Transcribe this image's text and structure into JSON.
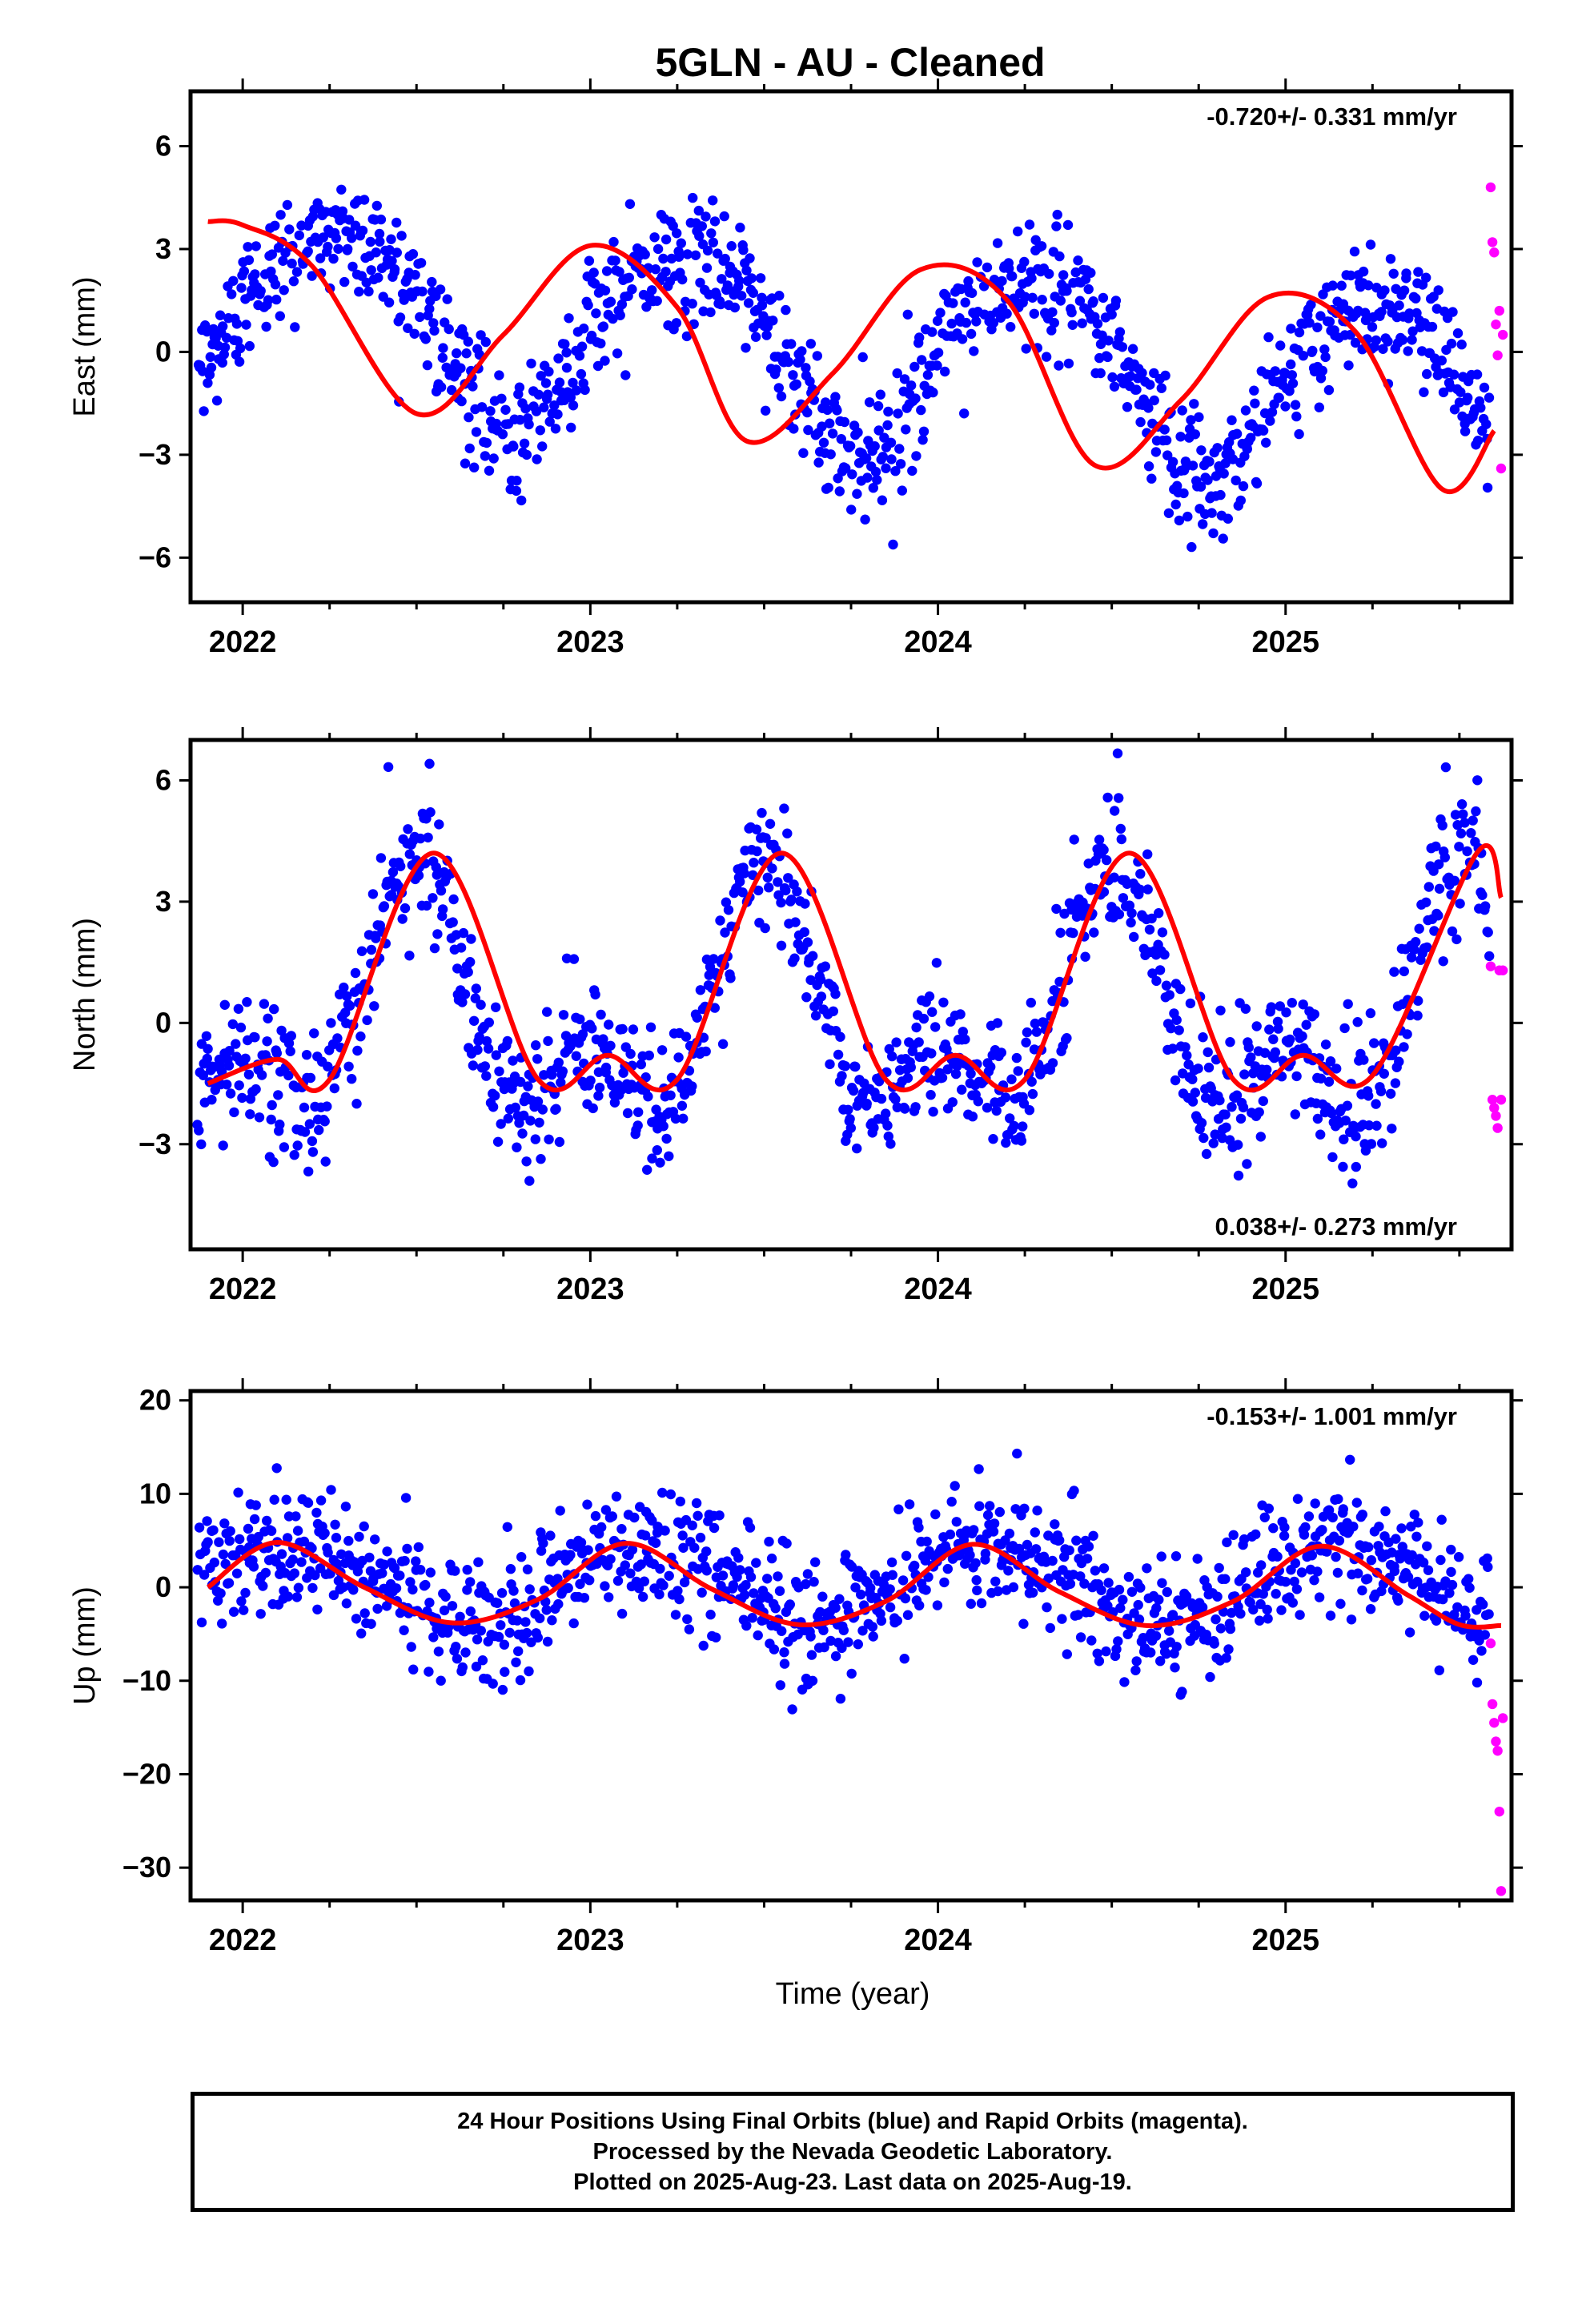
{
  "title": "5GLN  - AU - Cleaned",
  "xlabel": "Time (year)",
  "x_tick_labels": [
    "2022",
    "2023",
    "2024",
    "2025"
  ],
  "footer": {
    "line1": "24 Hour Positions Using Final Orbits (blue) and Rapid Orbits (magenta).",
    "line2": "Processed by the Nevada Geodetic Laboratory.",
    "line3": "Plotted on 2025-Aug-23. Last data on 2025-Aug-19."
  },
  "colors": {
    "final": "#0000ff",
    "rapid": "#ff00ff",
    "model": "#ff0000",
    "frame": "#000000"
  },
  "chart_data": [
    {
      "type": "scatter",
      "component": "East",
      "ylabel": "East (mm)",
      "rate": "-0.720+/- 0.331 mm/yr",
      "rate_position": "top-right",
      "xlim": [
        2021.85,
        2025.65
      ],
      "ylim": [
        -7.3,
        7.6
      ],
      "yticks": [
        -6,
        -3,
        0,
        3,
        6
      ],
      "ytick_labels": [
        "−6",
        "−3",
        "0",
        "3",
        "6"
      ],
      "fit": {
        "trend": -0.72,
        "offset": 0.05,
        "annual": [
          {
            "c": -0.3,
            "s": 2.6
          }
        ],
        "semiannual": [
          {
            "c": 0.3,
            "s": 0
          }
        ],
        "scatter": 0.9
      },
      "model_curve": {
        "x": [
          2021.9,
          2022.0,
          2022.2,
          2022.5,
          2022.75,
          2023.0,
          2023.25,
          2023.45,
          2023.7,
          2023.95,
          2024.2,
          2024.45,
          2024.7,
          2024.95,
          2025.2,
          2025.45,
          2025.6
        ],
        "y": [
          3.8,
          3.7,
          2.5,
          -1.8,
          0.5,
          3.1,
          1.3,
          -2.6,
          -0.6,
          2.4,
          1.5,
          -3.3,
          -1.4,
          1.6,
          0.6,
          -4.0,
          -2.3
        ]
      },
      "rapid": {
        "x": [
          2025.59,
          2025.595,
          2025.6,
          2025.605,
          2025.61,
          2025.615,
          2025.62,
          2025.625
        ],
        "y": [
          4.8,
          3.2,
          2.9,
          0.8,
          -0.1,
          1.2,
          -3.4,
          0.5
        ]
      }
    },
    {
      "type": "scatter",
      "component": "North",
      "ylabel": "North (mm)",
      "rate": "0.038+/- 0.273 mm/yr",
      "rate_position": "bottom-right",
      "xlim": [
        2021.85,
        2025.65
      ],
      "ylim": [
        -5.6,
        7.0
      ],
      "yticks": [
        -3,
        0,
        3,
        6
      ],
      "ytick_labels": [
        "−3",
        "0",
        "3",
        "6"
      ],
      "fit": {
        "trend": 0.038,
        "offset": 0.0,
        "annual": [
          {
            "c": -2.35,
            "s": 0
          }
        ],
        "semiannual": [
          {
            "c": 1.7,
            "s": 0
          }
        ],
        "scatter": 0.85
      },
      "model_curve": {
        "x": [
          2021.9,
          2022.1,
          2022.25,
          2022.55,
          2022.85,
          2023.05,
          2023.25,
          2023.55,
          2023.85,
          2024.05,
          2024.25,
          2024.55,
          2024.85,
          2025.05,
          2025.25,
          2025.55,
          2025.62
        ],
        "y": [
          -1.5,
          -0.9,
          -1.4,
          4.2,
          -1.4,
          -0.8,
          -1.4,
          4.2,
          -1.4,
          -0.8,
          -1.4,
          4.2,
          -1.4,
          -0.8,
          -1.3,
          4.2,
          3.1
        ]
      },
      "rapid": {
        "x": [
          2025.59,
          2025.595,
          2025.6,
          2025.605,
          2025.61,
          2025.615,
          2025.62,
          2025.625
        ],
        "y": [
          1.4,
          -1.9,
          -2.1,
          -2.3,
          -2.6,
          1.3,
          -1.9,
          1.3
        ]
      }
    },
    {
      "type": "scatter",
      "component": "Up",
      "ylabel": "Up (mm)",
      "rate": "-0.153+/- 1.001 mm/yr",
      "rate_position": "top-right",
      "xlim": [
        2021.85,
        2025.65
      ],
      "ylim": [
        -33.5,
        21.0
      ],
      "yticks": [
        -30,
        -20,
        -10,
        0,
        10,
        20
      ],
      "ytick_labels": [
        "−30",
        "−20",
        "−10",
        "0",
        "10",
        "20"
      ],
      "fit": {
        "trend": -0.153,
        "offset": 0.4,
        "annual": [
          {
            "c": 2.2,
            "s": 3.5
          }
        ],
        "semiannual": [
          {
            "c": 0.3,
            "s": -0.3
          }
        ],
        "scatter": 3.4
      },
      "model_curve": {
        "x": [
          2021.9,
          2022.1,
          2022.35,
          2022.6,
          2022.85,
          2023.1,
          2023.35,
          2023.6,
          2023.85,
          2024.1,
          2024.35,
          2024.6,
          2024.85,
          2025.1,
          2025.35,
          2025.5,
          2025.62
        ],
        "y": [
          0.0,
          4.8,
          0.0,
          -3.8,
          -1.3,
          4.7,
          -0.2,
          -4.0,
          -1.5,
          4.6,
          -0.5,
          -4.1,
          -1.5,
          4.4,
          -0.8,
          -4.0,
          -4.1
        ]
      },
      "rapid": {
        "x": [
          2025.59,
          2025.595,
          2025.6,
          2025.605,
          2025.61,
          2025.615,
          2025.62,
          2025.625
        ],
        "y": [
          -6.0,
          -12.5,
          -14.5,
          -16.5,
          -17.5,
          -24.0,
          -32.5,
          -14.0
        ]
      }
    }
  ]
}
